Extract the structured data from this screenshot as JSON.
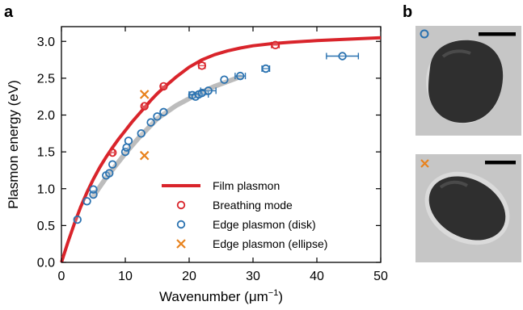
{
  "panel_labels": {
    "a": "a",
    "b": "b"
  },
  "colors": {
    "film": "#d9242b",
    "breathing": "#d9242b",
    "disk": "#2a72b0",
    "ellipse": "#e8821d",
    "fit": "#b5b5b5",
    "tem_bg": "#c7c7c7",
    "particle": "#2b2b2b",
    "scale_bar": "#000000"
  },
  "chart_data": {
    "type": "scatter",
    "xlabel": "Wavenumber (μm⁻¹)",
    "xlabel_parts": {
      "main": "Wavenumber (",
      "mu": "μ",
      "unit": "m",
      "sup": "−1",
      "close": ")"
    },
    "ylabel": "Plasmon energy (eV)",
    "xlim": [
      0,
      50
    ],
    "ylim": [
      0,
      3.2
    ],
    "xticks": [
      0,
      10,
      20,
      30,
      40,
      50
    ],
    "yticks": [
      0.0,
      0.5,
      1.0,
      1.5,
      2.0,
      2.5,
      3.0
    ],
    "ytick_labels": [
      "0.0",
      "0.5",
      "1.0",
      "1.5",
      "2.0",
      "2.5",
      "3.0"
    ],
    "legend_position": "bottom-right",
    "series": [
      {
        "name": "Film plasmon",
        "kind": "line",
        "x": [
          0,
          1,
          2,
          3,
          4,
          5,
          6,
          7,
          8,
          9,
          10,
          11,
          12,
          13,
          14,
          15,
          16,
          18,
          20,
          22,
          24,
          26,
          28,
          30,
          33,
          36,
          40,
          45,
          50
        ],
        "y": [
          0,
          0.27,
          0.52,
          0.75,
          0.95,
          1.13,
          1.29,
          1.43,
          1.56,
          1.68,
          1.79,
          1.9,
          2.0,
          2.1,
          2.2,
          2.29,
          2.37,
          2.52,
          2.65,
          2.75,
          2.82,
          2.87,
          2.91,
          2.94,
          2.97,
          2.99,
          3.01,
          3.03,
          3.05
        ]
      },
      {
        "name": "Breathing mode",
        "kind": "scatter",
        "marker": "open-circle",
        "x": [
          8,
          13,
          16,
          22,
          33.5
        ],
        "y": [
          1.49,
          2.12,
          2.39,
          2.67,
          2.95
        ],
        "xerr": [
          0.3,
          0.3,
          0.4,
          0.5,
          0.6
        ]
      },
      {
        "name": "Edge plasmon (disk)",
        "kind": "scatter",
        "marker": "open-circle",
        "x": [
          2.5,
          4,
          5,
          5,
          7,
          7.5,
          8,
          10,
          10.2,
          10.5,
          12.5,
          14,
          15,
          16,
          20.5,
          21,
          21.5,
          22,
          23,
          25.5,
          28,
          32,
          44
        ],
        "y": [
          0.58,
          0.83,
          0.92,
          0.99,
          1.18,
          1.21,
          1.33,
          1.5,
          1.56,
          1.65,
          1.75,
          1.9,
          1.98,
          2.04,
          2.27,
          2.25,
          2.28,
          2.3,
          2.33,
          2.48,
          2.53,
          2.63,
          2.8
        ],
        "xerr": [
          0,
          0,
          0,
          0,
          0,
          0,
          0,
          0,
          0,
          0,
          0,
          0,
          0,
          0,
          0.5,
          0,
          1.5,
          0,
          1.2,
          0,
          0.8,
          0.6,
          2.5
        ]
      },
      {
        "name": "Edge plasmon (ellipse)",
        "kind": "scatter",
        "marker": "x",
        "x": [
          13,
          13
        ],
        "y": [
          2.28,
          1.45
        ]
      },
      {
        "name": "",
        "kind": "fit",
        "x": [
          5,
          7,
          10,
          12,
          15,
          18,
          21,
          24,
          28
        ],
        "y": [
          0.9,
          1.15,
          1.48,
          1.68,
          1.95,
          2.13,
          2.27,
          2.39,
          2.52
        ]
      }
    ]
  },
  "legend": [
    {
      "label": "Film plasmon",
      "marker": "line"
    },
    {
      "label": "Breathing mode",
      "marker": "circle-red"
    },
    {
      "label": "Edge plasmon (disk)",
      "marker": "circle-blue"
    },
    {
      "label": "Edge plasmon (ellipse)",
      "marker": "x-orange"
    }
  ],
  "tem_images": [
    {
      "marker": "circle",
      "particle": "disk"
    },
    {
      "marker": "x",
      "particle": "ellipse"
    }
  ]
}
